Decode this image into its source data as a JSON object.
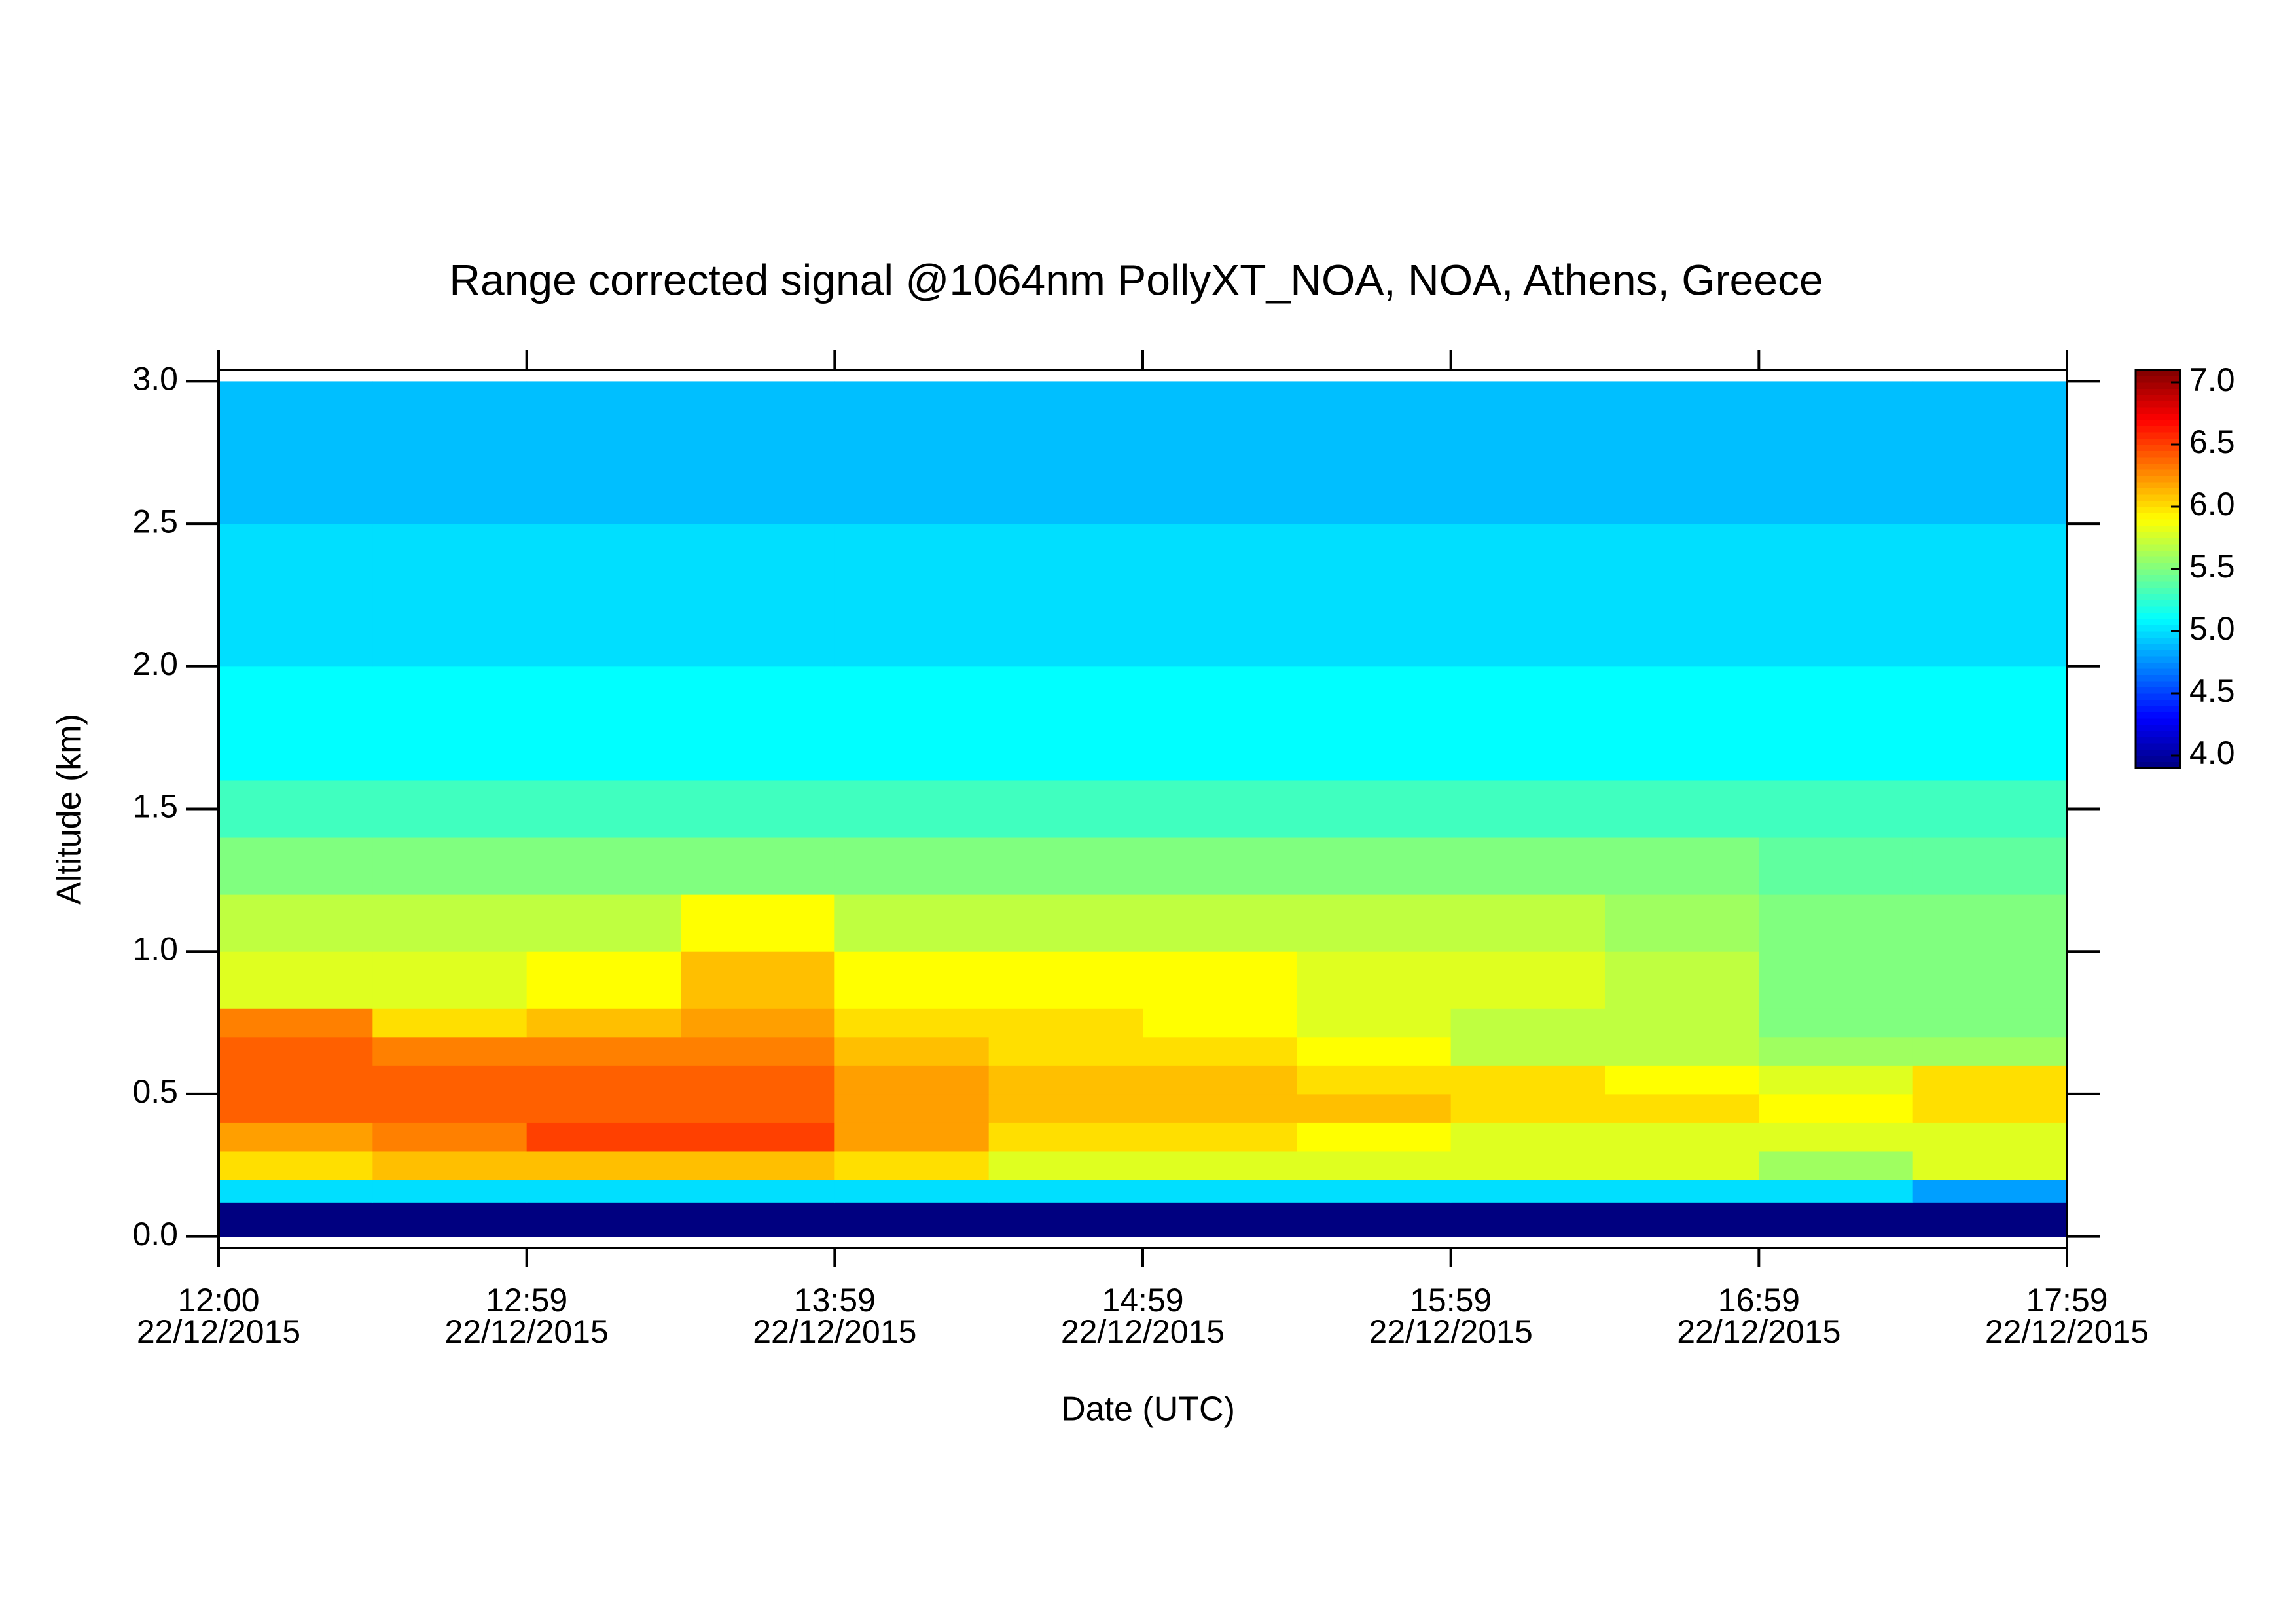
{
  "chart_data": {
    "type": "heatmap",
    "title": "Range corrected signal @1064nm  PollyXT_NOA, NOA, Athens, Greece",
    "x_label": "Date (UTC)",
    "y_label": "Altitude (km)",
    "colormap": "jet",
    "ylim": [
      -0.04,
      3.04
    ],
    "yticks": [
      {
        "value": 0.0,
        "label": "0.0"
      },
      {
        "value": 0.5,
        "label": "0.5"
      },
      {
        "value": 1.0,
        "label": "1.0"
      },
      {
        "value": 1.5,
        "label": "1.5"
      },
      {
        "value": 2.0,
        "label": "2.0"
      },
      {
        "value": 2.5,
        "label": "2.5"
      },
      {
        "value": 3.0,
        "label": "3.0"
      }
    ],
    "xticks": [
      {
        "time": "12:00",
        "date": "22/12/2015"
      },
      {
        "time": "12:59",
        "date": "22/12/2015"
      },
      {
        "time": "13:59",
        "date": "22/12/2015"
      },
      {
        "time": "14:59",
        "date": "22/12/2015"
      },
      {
        "time": "15:59",
        "date": "22/12/2015"
      },
      {
        "time": "16:59",
        "date": "22/12/2015"
      },
      {
        "time": "17:59",
        "date": "22/12/2015"
      }
    ],
    "ybins": [
      0,
      0.12,
      0.2,
      0.3,
      0.4,
      0.5,
      0.6,
      0.7,
      0.8,
      1.0,
      1.2,
      1.4,
      1.6,
      2.0,
      2.5,
      3.0
    ],
    "values": [
      [
        3.9,
        3.9,
        3.9,
        3.9,
        3.9,
        3.9,
        3.9,
        3.9,
        3.9,
        3.9,
        3.9,
        3.9
      ],
      [
        5.0,
        5.0,
        5.0,
        5.0,
        5.0,
        5.0,
        5.0,
        5.0,
        5.0,
        5.0,
        5.0,
        4.8
      ],
      [
        6.0,
        6.1,
        6.1,
        6.1,
        6.0,
        5.8,
        5.8,
        5.8,
        5.8,
        5.8,
        5.6,
        5.8
      ],
      [
        6.2,
        6.3,
        6.5,
        6.5,
        6.2,
        6.0,
        6.0,
        5.9,
        5.8,
        5.8,
        5.8,
        5.8
      ],
      [
        6.4,
        6.4,
        6.4,
        6.4,
        6.2,
        6.1,
        6.1,
        6.1,
        6.0,
        6.0,
        5.9,
        6.0
      ],
      [
        6.4,
        6.4,
        6.4,
        6.4,
        6.2,
        6.1,
        6.1,
        6.0,
        6.0,
        5.9,
        5.8,
        6.0
      ],
      [
        6.4,
        6.3,
        6.3,
        6.3,
        6.1,
        6.0,
        6.0,
        5.9,
        5.7,
        5.7,
        5.6,
        5.6
      ],
      [
        6.3,
        6.0,
        6.1,
        6.2,
        6.0,
        6.0,
        5.9,
        5.8,
        5.7,
        5.7,
        5.5,
        5.5
      ],
      [
        5.8,
        5.8,
        5.9,
        6.1,
        5.9,
        5.9,
        5.9,
        5.8,
        5.8,
        5.7,
        5.5,
        5.5
      ],
      [
        5.7,
        5.7,
        5.7,
        5.9,
        5.7,
        5.7,
        5.7,
        5.7,
        5.7,
        5.6,
        5.5,
        5.5
      ],
      [
        5.5,
        5.5,
        5.5,
        5.5,
        5.5,
        5.5,
        5.5,
        5.5,
        5.5,
        5.5,
        5.4,
        5.4
      ],
      [
        5.3,
        5.3,
        5.3,
        5.3,
        5.3,
        5.3,
        5.3,
        5.3,
        5.3,
        5.3,
        5.3,
        5.3
      ],
      [
        5.1,
        5.1,
        5.1,
        5.1,
        5.1,
        5.1,
        5.1,
        5.1,
        5.1,
        5.1,
        5.1,
        5.1
      ],
      [
        5.0,
        5.0,
        5.0,
        5.0,
        5.0,
        5.0,
        5.0,
        5.0,
        5.0,
        5.0,
        5.0,
        5.0
      ],
      [
        4.9,
        4.9,
        4.9,
        4.9,
        4.9,
        4.9,
        4.9,
        4.9,
        4.9,
        4.9,
        4.9,
        4.9
      ]
    ],
    "clim": [
      3.9,
      7.1
    ],
    "cticks": [
      {
        "value": 4.0,
        "label": "4.0"
      },
      {
        "value": 4.5,
        "label": "4.5"
      },
      {
        "value": 5.0,
        "label": "5.0"
      },
      {
        "value": 5.5,
        "label": "5.5"
      },
      {
        "value": 6.0,
        "label": "6.0"
      },
      {
        "value": 6.5,
        "label": "6.5"
      },
      {
        "value": 7.0,
        "label": "7.0"
      }
    ]
  }
}
